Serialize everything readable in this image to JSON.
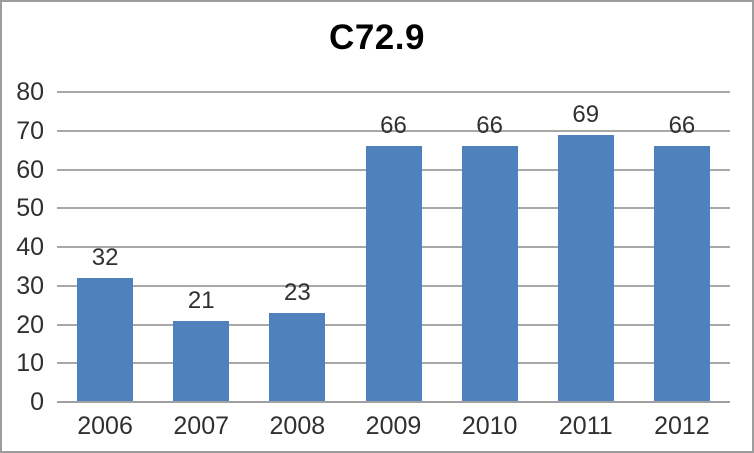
{
  "chart_data": {
    "type": "bar",
    "title": "C72.9",
    "categories": [
      "2006",
      "2007",
      "2008",
      "2009",
      "2010",
      "2011",
      "2012"
    ],
    "values": [
      32,
      21,
      23,
      66,
      66,
      69,
      66
    ],
    "data_labels": [
      32,
      21,
      23,
      66,
      66,
      69,
      66
    ],
    "xlabel": "",
    "ylabel": "",
    "ylim": [
      0,
      80
    ],
    "yticks": [
      0,
      10,
      20,
      30,
      40,
      50,
      60,
      70,
      80
    ],
    "grid": true,
    "legend": false,
    "colors": {
      "bar": "#4f81bd",
      "gridline": "#a8a8a8",
      "axis_line": "#a0a0a0",
      "tick_label": "#303030",
      "title": "#000000",
      "frame_border": "#9d9d9d",
      "background": "#ffffff"
    }
  }
}
